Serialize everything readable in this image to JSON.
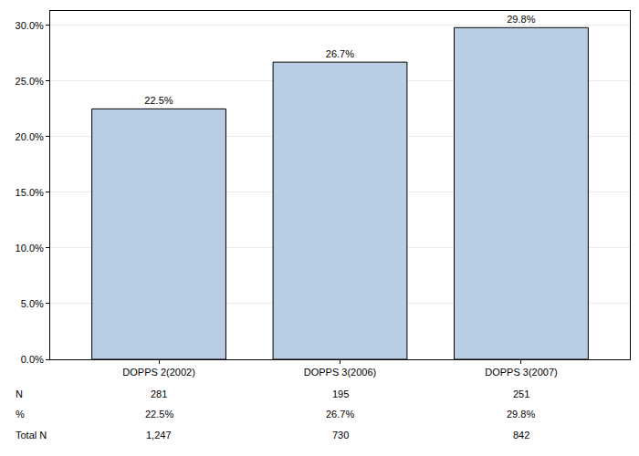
{
  "chart_data": {
    "type": "bar",
    "categories": [
      "DOPPS 2(2002)",
      "DOPPS 3(2006)",
      "DOPPS 3(2007)"
    ],
    "values": [
      22.5,
      26.7,
      29.8
    ],
    "value_labels": [
      "22.5%",
      "26.7%",
      "29.8%"
    ],
    "color": "#b9cde5",
    "ylim": [
      0,
      31.3
    ],
    "yticks": [
      {
        "value": 0,
        "label": "0.0%"
      },
      {
        "value": 5,
        "label": "5.0%"
      },
      {
        "value": 10,
        "label": "10.0%"
      },
      {
        "value": 15,
        "label": "15.0%"
      },
      {
        "value": 20,
        "label": "20.0%"
      },
      {
        "value": 25,
        "label": "25.0%"
      },
      {
        "value": 30,
        "label": "30.0%"
      }
    ],
    "grid": true,
    "data_labels": true
  },
  "table": {
    "rows": [
      {
        "label": "N",
        "cells": [
          "281",
          "195",
          "251"
        ]
      },
      {
        "label": "%",
        "cells": [
          "22.5%",
          "26.7%",
          "29.8%"
        ]
      },
      {
        "label": "Total N",
        "cells": [
          "1,247",
          "730",
          "842"
        ]
      }
    ]
  }
}
